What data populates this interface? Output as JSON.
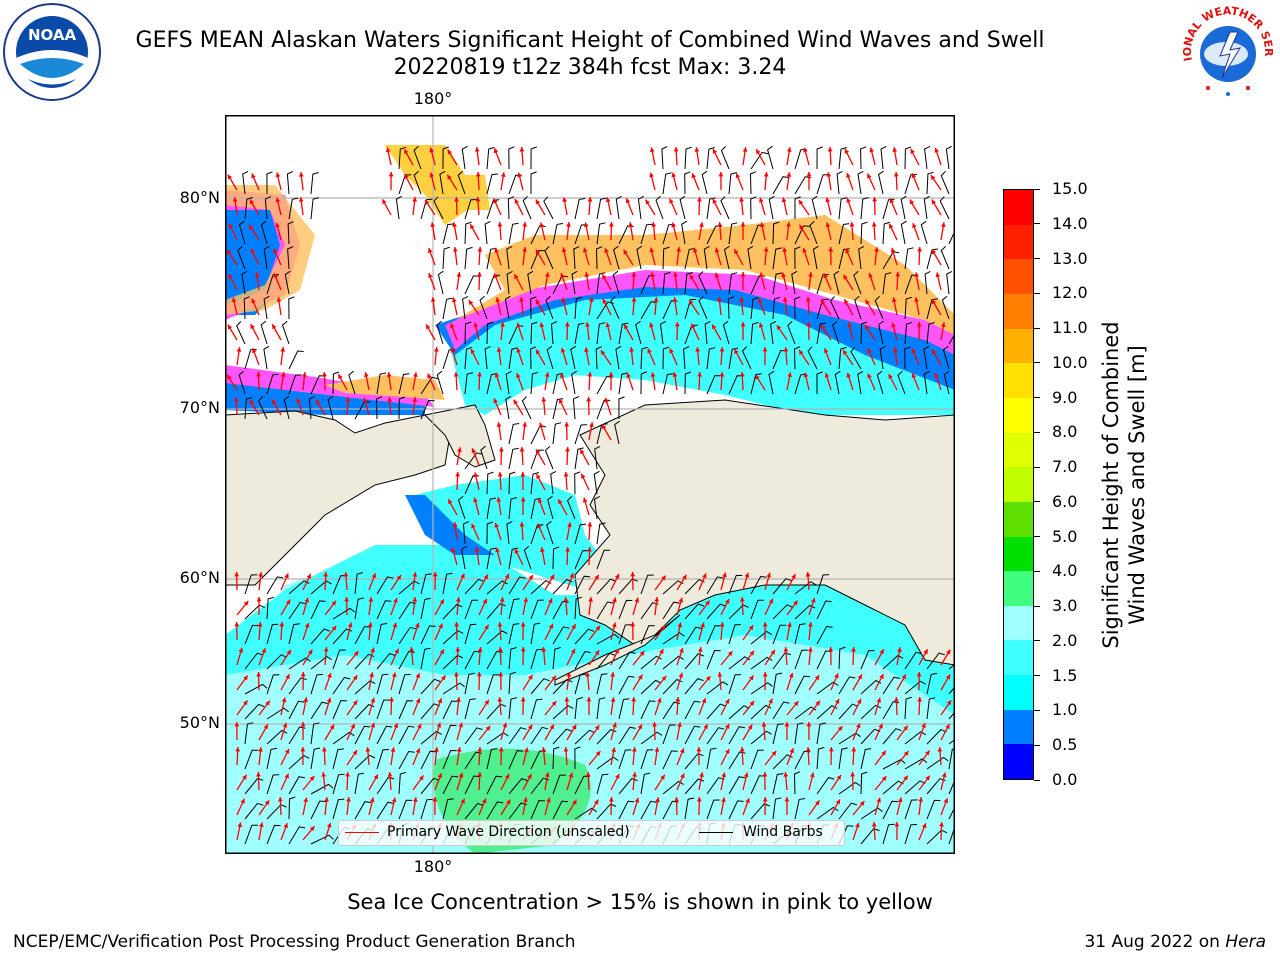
{
  "header": {
    "title_line1": "GEFS MEAN Alaskan Waters Significant Height of Combined Wind Waves and Swell",
    "title_line2": "20220819 t12z 384h fcst   Max: 3.24"
  },
  "logos": {
    "left": {
      "text": "NOAA",
      "icon": "noaa-logo"
    },
    "right": {
      "text": "NATIONAL WEATHER SERVICE",
      "icon": "nws-logo"
    }
  },
  "map": {
    "longitude_labels": {
      "top": "180°",
      "bottom": "180°"
    },
    "latitude_labels": [
      "80°N",
      "70°N",
      "60°N",
      "50°N"
    ],
    "colors": {
      "land": "#efebdc",
      "ice_pink": "#ff55ff",
      "ice_yellow": "#ffd700",
      "wave_arrows": "#ff0000",
      "wind_barbs": "#000000",
      "grid": "#b4b4b4"
    }
  },
  "legend": {
    "wave_direction_label": "Primary Wave Direction (unscaled)",
    "wind_barbs_label": "Wind Barbs"
  },
  "colorbar": {
    "title_line1": "Significant Height of Combined",
    "title_line2": "Wind Waves and Swell [m]",
    "ticks": [
      "0.0",
      "0.5",
      "1.0",
      "1.5",
      "2.0",
      "3.0",
      "4.0",
      "5.0",
      "6.0",
      "7.0",
      "8.0",
      "9.0",
      "10.0",
      "11.0",
      "12.0",
      "13.0",
      "14.0",
      "15.0"
    ],
    "colors": [
      "#0000ff",
      "#0080ff",
      "#00ffff",
      "#40ffff",
      "#a0ffff",
      "#40ff80",
      "#00e000",
      "#60e000",
      "#c0ff00",
      "#e0ff00",
      "#ffff00",
      "#ffe000",
      "#ffb000",
      "#ff8000",
      "#ff5000",
      "#ff2000",
      "#ff0000"
    ]
  },
  "notes": {
    "sea_ice": "Sea Ice Concentration > 15% is shown in pink to yellow",
    "producer": "NCEP/EMC/Verification Post Processing Product Generation Branch",
    "date": "31 Aug 2022 on ",
    "machine": "Hera"
  }
}
